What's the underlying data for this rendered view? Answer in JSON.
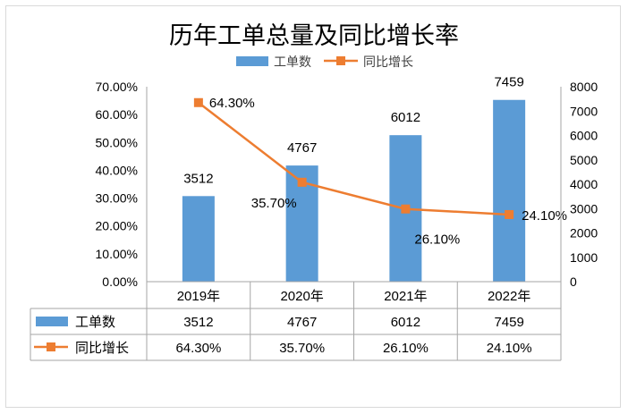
{
  "chart_data": {
    "type": "bar",
    "title": "历年工单总量及同比增长率",
    "categories": [
      "2019年",
      "2020年",
      "2021年",
      "2022年"
    ],
    "series": [
      {
        "name": "工单数",
        "type": "bar",
        "axis": "right",
        "color": "#5b9bd5",
        "values": [
          3512,
          4767,
          6012,
          7459
        ],
        "labels": [
          "3512",
          "4767",
          "6012",
          "7459"
        ]
      },
      {
        "name": "同比增长",
        "type": "line",
        "axis": "left",
        "color": "#ed7d31",
        "values": [
          64.3,
          35.7,
          26.1,
          24.1
        ],
        "labels": [
          "64.30%",
          "35.70%",
          "26.10%",
          "24.10%"
        ]
      }
    ],
    "y_left": {
      "ylim": [
        0,
        70
      ],
      "ticks": [
        "0.00%",
        "10.00%",
        "20.00%",
        "30.00%",
        "40.00%",
        "50.00%",
        "60.00%",
        "70.00%"
      ]
    },
    "y_right": {
      "ylim": [
        0,
        8000
      ],
      "ticks": [
        "0",
        "1000",
        "2000",
        "3000",
        "4000",
        "5000",
        "6000",
        "7000",
        "8000"
      ]
    },
    "legend": "top",
    "grid": false,
    "data_table": true
  }
}
